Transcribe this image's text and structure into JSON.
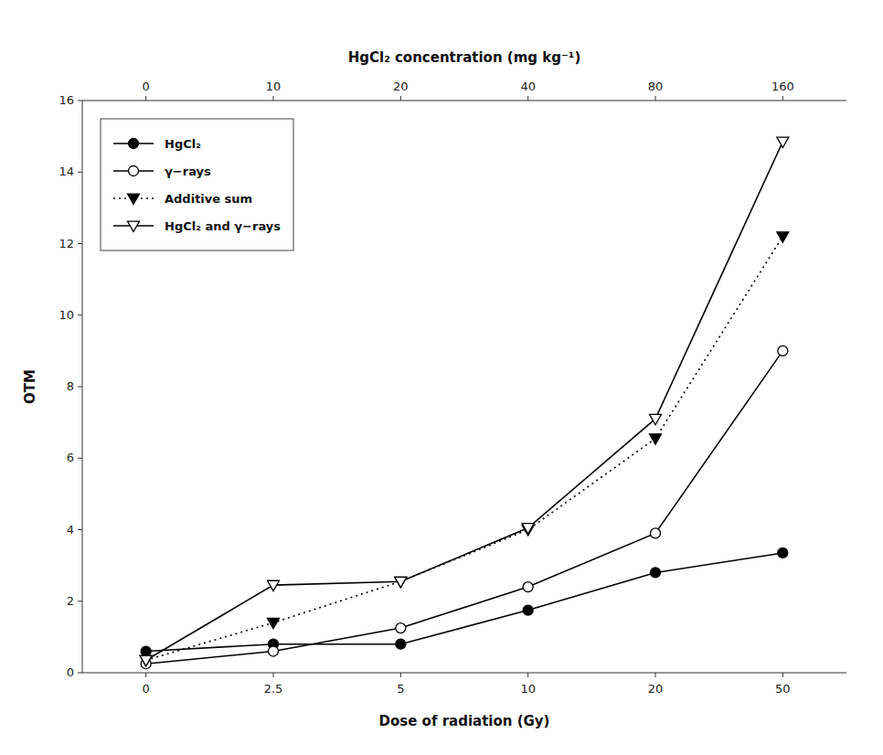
{
  "chart_data": {
    "type": "line",
    "x_label": "Dose of radiation (Gy)",
    "x2_label": "HgCl₂ concentration (mg kg⁻¹)",
    "y_label": "OTM",
    "categories": [
      "0",
      "2.5",
      "5",
      "10",
      "20",
      "50"
    ],
    "x2_categories": [
      "0",
      "10",
      "20",
      "40",
      "80",
      "160"
    ],
    "series": [
      {
        "name": "HgCl₂",
        "color": "black",
        "marker": "filled-circle",
        "line_style": "solid",
        "values": [
          0.6,
          0.8,
          0.8,
          1.75,
          2.8,
          3.35
        ]
      },
      {
        "name": "γ−rays",
        "color": "black",
        "marker": "open-circle",
        "line_style": "solid",
        "values": [
          0.25,
          0.6,
          1.25,
          2.4,
          3.9,
          9.0
        ]
      },
      {
        "name": "Additive sum",
        "color": "black",
        "marker": "filled-triangle-down",
        "line_style": "dotted",
        "values": [
          0.35,
          1.4,
          2.55,
          4.0,
          6.55,
          12.2
        ]
      },
      {
        "name": "HgCl₂ and γ−rays",
        "color": "black",
        "marker": "open-triangle-down",
        "line_style": "solid",
        "values": [
          0.35,
          2.45,
          2.55,
          4.05,
          7.1,
          14.85
        ]
      }
    ],
    "ylim": [
      0,
      16
    ],
    "yticks": [
      0,
      2,
      4,
      6,
      8,
      10,
      12,
      14,
      16
    ],
    "grid": false,
    "legend": "upper left"
  }
}
